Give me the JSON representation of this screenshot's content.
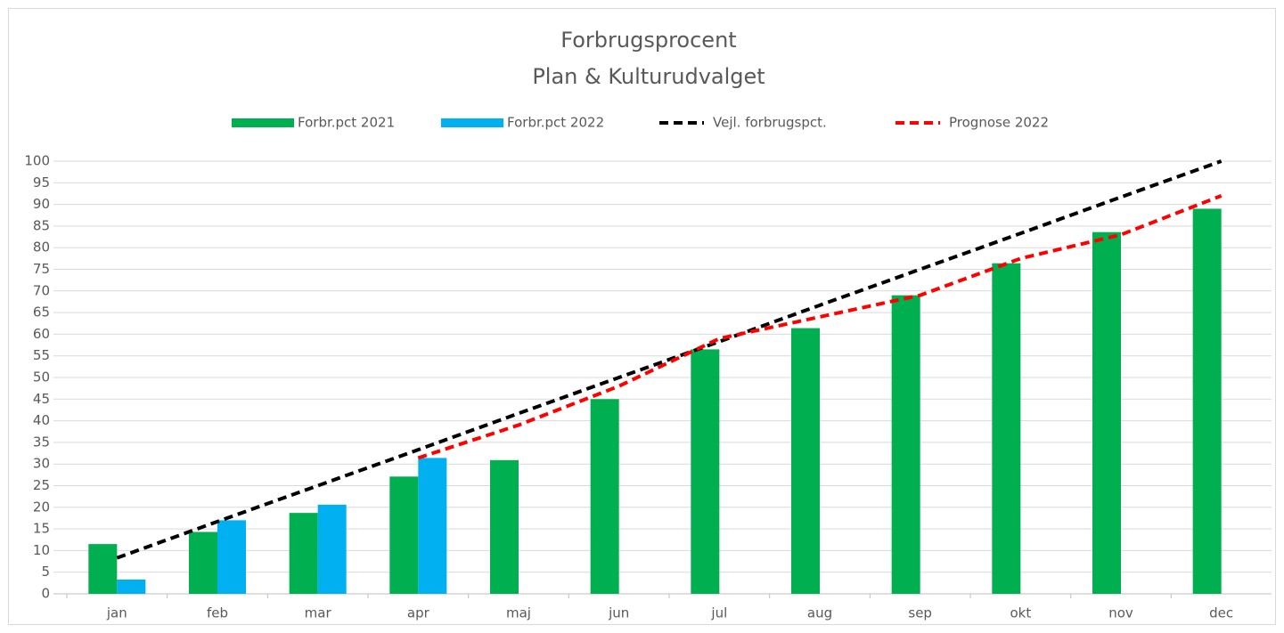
{
  "chart_data": {
    "type": "bar",
    "title": [
      "Forbrugsprocent",
      "Plan & Kulturudvalget"
    ],
    "categories": [
      "jan",
      "feb",
      "mar",
      "apr",
      "maj",
      "jun",
      "jul",
      "aug",
      "sep",
      "okt",
      "nov",
      "dec"
    ],
    "series": [
      {
        "name": "Forbr.pct 2021",
        "type": "bar",
        "color": "#00b050",
        "values": [
          11.5,
          14.3,
          18.7,
          27.1,
          30.9,
          45,
          56.5,
          61.4,
          69,
          76.4,
          83.6,
          89
        ]
      },
      {
        "name": "Forbr.pct 2022",
        "type": "bar",
        "color": "#00b0f0",
        "values": [
          3.3,
          17,
          20.6,
          31.4,
          null,
          null,
          null,
          null,
          null,
          null,
          null,
          null
        ]
      },
      {
        "name": "Vejl. forbrugspct.",
        "type": "line",
        "dashed": true,
        "color": "#000000",
        "values": [
          8.3,
          16.7,
          25,
          33.3,
          41.7,
          50,
          58.3,
          66.7,
          75,
          83.3,
          91.7,
          100
        ]
      },
      {
        "name": "Prognose 2022",
        "type": "line",
        "dashed": true,
        "color": "#ff0000",
        "values": [
          null,
          null,
          null,
          31.4,
          39,
          48,
          59,
          64,
          69,
          77.5,
          83,
          92
        ]
      }
    ],
    "ylim": [
      0,
      100
    ],
    "yticks": [
      0,
      5,
      10,
      15,
      20,
      25,
      30,
      35,
      40,
      45,
      50,
      55,
      60,
      65,
      70,
      75,
      80,
      85,
      90,
      95,
      100
    ],
    "grid": true,
    "legend": "top"
  }
}
